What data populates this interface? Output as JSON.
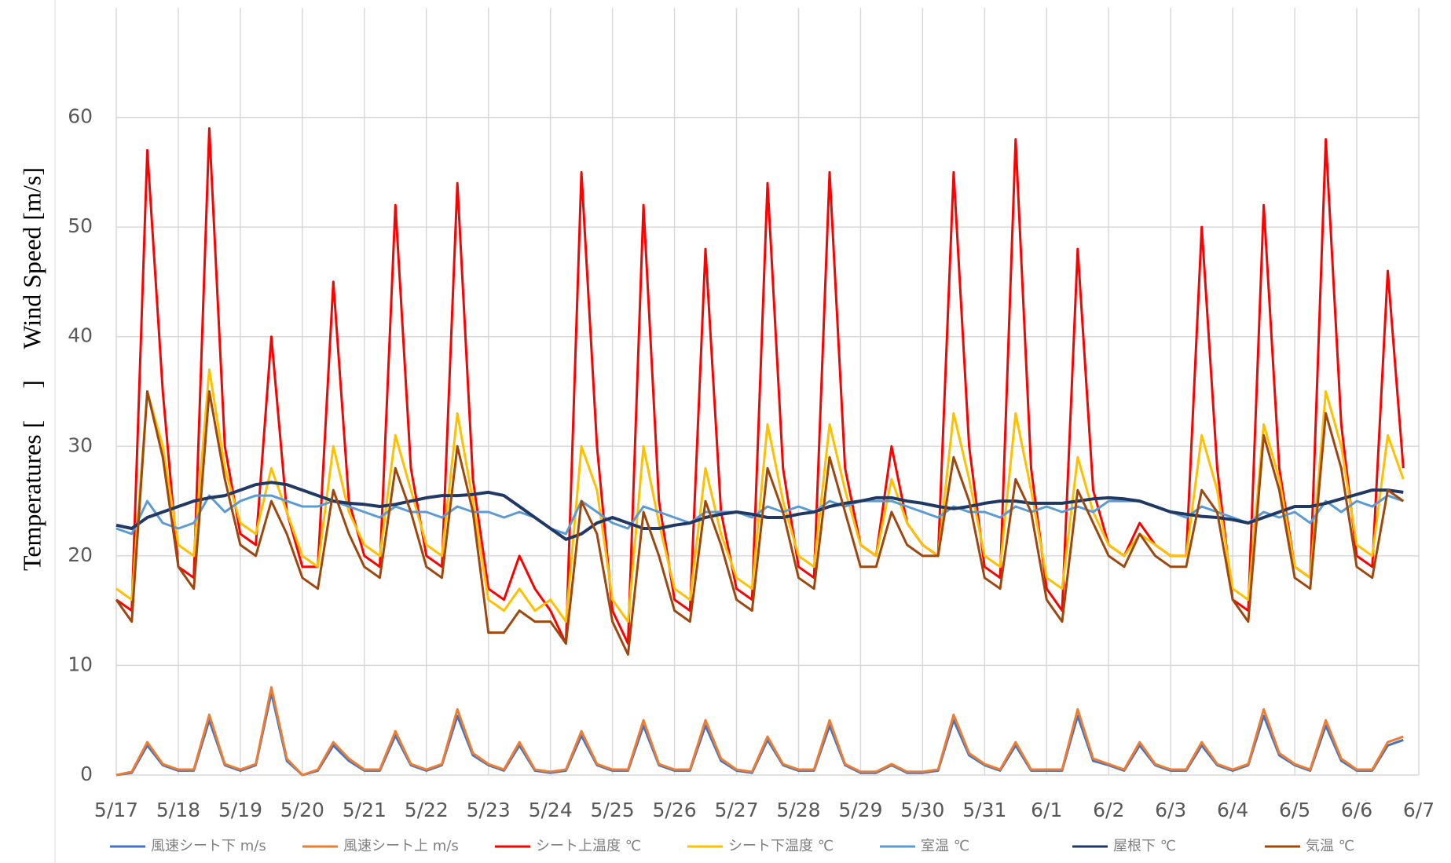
{
  "chart_data": {
    "type": "line",
    "ylabel": "Temperatures [     ]     Wind Speed [m/s]",
    "x": [
      0,
      0.25,
      0.5,
      0.75,
      1,
      1.25,
      1.5,
      1.75,
      2,
      2.25,
      2.5,
      2.75,
      3,
      3.25,
      3.5,
      3.75,
      4,
      4.25,
      4.5,
      4.75,
      5,
      5.25,
      5.5,
      5.75,
      6,
      6.25,
      6.5,
      6.75,
      7,
      7.25,
      7.5,
      7.75,
      8,
      8.25,
      8.5,
      8.75,
      9,
      9.25,
      9.5,
      9.75,
      10,
      10.25,
      10.5,
      10.75,
      11,
      11.25,
      11.5,
      11.75,
      12,
      12.25,
      12.5,
      12.75,
      13,
      13.25,
      13.5,
      13.75,
      14,
      14.25,
      14.5,
      14.75,
      15,
      15.25,
      15.5,
      15.75,
      16,
      16.25,
      16.5,
      16.75,
      17,
      17.25,
      17.5,
      17.75,
      18,
      18.25,
      18.5,
      18.75,
      19,
      19.25,
      19.5,
      19.75,
      20,
      20.25,
      20.5,
      20.75
    ],
    "xlim": [
      0,
      21
    ],
    "xticks": [
      {
        "value": 0,
        "label": "5/17"
      },
      {
        "value": 1,
        "label": "5/18"
      },
      {
        "value": 2,
        "label": "5/19"
      },
      {
        "value": 3,
        "label": "5/20"
      },
      {
        "value": 4,
        "label": "5/21"
      },
      {
        "value": 5,
        "label": "5/22"
      },
      {
        "value": 6,
        "label": "5/23"
      },
      {
        "value": 7,
        "label": "5/24"
      },
      {
        "value": 8,
        "label": "5/25"
      },
      {
        "value": 9,
        "label": "5/26"
      },
      {
        "value": 10,
        "label": "5/27"
      },
      {
        "value": 11,
        "label": "5/28"
      },
      {
        "value": 12,
        "label": "5/29"
      },
      {
        "value": 13,
        "label": "5/30"
      },
      {
        "value": 14,
        "label": "5/31"
      },
      {
        "value": 15,
        "label": "6/1"
      },
      {
        "value": 16,
        "label": "6/2"
      },
      {
        "value": 17,
        "label": "6/3"
      },
      {
        "value": 18,
        "label": "6/4"
      },
      {
        "value": 19,
        "label": "6/5"
      },
      {
        "value": 20,
        "label": "6/6"
      },
      {
        "value": 21,
        "label": "6/7"
      }
    ],
    "ylim": [
      0,
      70
    ],
    "yticks": [
      0,
      10,
      20,
      30,
      40,
      50,
      60
    ],
    "grid": true,
    "legend": "bottom",
    "series": [
      {
        "name": "風速シート下 m/s",
        "color": "#4472c4",
        "values": [
          0,
          0.2,
          2.7,
          0.9,
          0.4,
          0.4,
          5,
          0.9,
          0.4,
          0.9,
          7.5,
          1.3,
          0,
          0.4,
          2.7,
          1.3,
          0.4,
          0.4,
          3.6,
          0.9,
          0.4,
          0.9,
          5.4,
          1.8,
          0.9,
          0.4,
          2.7,
          0.4,
          0.2,
          0.4,
          3.6,
          0.9,
          0.4,
          0.4,
          4.5,
          0.9,
          0.4,
          0.4,
          4.5,
          1.3,
          0.4,
          0.2,
          3.2,
          0.9,
          0.4,
          0.4,
          4.5,
          0.9,
          0.2,
          0.2,
          0.9,
          0.2,
          0.2,
          0.4,
          5,
          1.8,
          0.9,
          0.4,
          2.7,
          0.4,
          0.4,
          0.4,
          5.4,
          1.3,
          0.9,
          0.4,
          2.7,
          0.9,
          0.4,
          0.4,
          2.7,
          0.9,
          0.4,
          0.9,
          5.4,
          1.8,
          0.9,
          0.4,
          4.5,
          1.3,
          0.4,
          0.4,
          2.7,
          3.2
        ]
      },
      {
        "name": "風速シート上 m/s",
        "color": "#ed7d31",
        "values": [
          0,
          0.3,
          3,
          1,
          0.5,
          0.5,
          5.5,
          1,
          0.5,
          1,
          8,
          1.5,
          0,
          0.5,
          3,
          1.5,
          0.5,
          0.5,
          4,
          1,
          0.5,
          1,
          6,
          2,
          1,
          0.5,
          3,
          0.5,
          0.3,
          0.5,
          4,
          1,
          0.5,
          0.5,
          5,
          1,
          0.5,
          0.5,
          5,
          1.5,
          0.5,
          0.3,
          3.5,
          1,
          0.5,
          0.5,
          5,
          1,
          0.3,
          0.3,
          1,
          0.3,
          0.3,
          0.5,
          5.5,
          2,
          1,
          0.5,
          3,
          0.5,
          0.5,
          0.5,
          6,
          1.5,
          1,
          0.5,
          3,
          1,
          0.5,
          0.5,
          3,
          1,
          0.5,
          1,
          6,
          2,
          1,
          0.5,
          5,
          1.5,
          0.5,
          0.5,
          3,
          3.5
        ]
      },
      {
        "name": "シート上温度 ℃",
        "color": "#ff0000",
        "values": [
          16,
          15,
          57,
          35,
          19,
          18,
          59,
          30,
          22,
          21,
          40,
          24,
          19,
          19,
          45,
          25,
          20,
          19,
          52,
          28,
          20,
          19,
          54,
          27,
          17,
          16,
          20,
          17,
          15,
          12,
          55,
          30,
          15,
          12,
          52,
          25,
          16,
          15,
          48,
          24,
          17,
          16,
          54,
          28,
          19,
          18,
          55,
          28,
          21,
          20,
          30,
          23,
          21,
          20,
          55,
          30,
          19,
          18,
          58,
          28,
          17,
          15,
          48,
          26,
          21,
          20,
          23,
          21,
          20,
          20,
          50,
          28,
          16,
          15,
          52,
          28,
          19,
          18,
          58,
          32,
          20,
          19,
          46,
          28
        ]
      },
      {
        "name": "シート下温度 ℃",
        "color": "#ffc000",
        "values": [
          17,
          16,
          35,
          30,
          21,
          20,
          37,
          28,
          23,
          22,
          28,
          24,
          20,
          19,
          30,
          24,
          21,
          20,
          31,
          26,
          21,
          20,
          33,
          25,
          16,
          15,
          17,
          15,
          16,
          14,
          30,
          26,
          16,
          14,
          30,
          23,
          17,
          16,
          28,
          22,
          18,
          17,
          32,
          25,
          20,
          19,
          32,
          26,
          21,
          20,
          27,
          23,
          21,
          20,
          33,
          27,
          20,
          19,
          33,
          26,
          18,
          17,
          29,
          24,
          21,
          20,
          22,
          21,
          20,
          20,
          31,
          26,
          17,
          16,
          32,
          27,
          19,
          18,
          35,
          30,
          21,
          20,
          31,
          27
        ]
      },
      {
        "name": "室温 ℃",
        "color": "#5b9bd5",
        "values": [
          22.5,
          22,
          25,
          23,
          22.5,
          23,
          25.5,
          24,
          25,
          25.5,
          25.5,
          25,
          24.5,
          24.5,
          25,
          24.5,
          24,
          23.5,
          24.5,
          24,
          24,
          23.5,
          24.5,
          24,
          24,
          23.5,
          24,
          23.5,
          22.5,
          22,
          25,
          24,
          23,
          22.5,
          24.5,
          24,
          23.5,
          23,
          24,
          24,
          24,
          23.5,
          24.5,
          24,
          24.5,
          24,
          25,
          24.5,
          25,
          25,
          25,
          24.5,
          24,
          23.5,
          24.5,
          24,
          24,
          23.5,
          24.5,
          24,
          24.5,
          24,
          24.5,
          24,
          25,
          25,
          25,
          24.5,
          24,
          23.5,
          24.5,
          24,
          23.5,
          23,
          24,
          23.5,
          24,
          23,
          25,
          24,
          25,
          24.5,
          25.5,
          25
        ]
      },
      {
        "name": "屋根下 ℃",
        "color": "#203864",
        "values": [
          22.8,
          22.5,
          23.5,
          24,
          24.5,
          25,
          25.3,
          25.5,
          26,
          26.5,
          26.7,
          26.5,
          26,
          25.5,
          25,
          24.8,
          24.7,
          24.5,
          24.7,
          25,
          25.3,
          25.5,
          25.5,
          25.6,
          25.8,
          25.5,
          24.5,
          23.5,
          22.5,
          21.5,
          22,
          23,
          23.5,
          23,
          22.5,
          22.5,
          22.8,
          23,
          23.5,
          23.8,
          24,
          23.8,
          23.5,
          23.5,
          23.8,
          24,
          24.5,
          24.8,
          25,
          25.3,
          25.3,
          25,
          24.8,
          24.5,
          24.3,
          24.5,
          24.8,
          25,
          25,
          24.8,
          24.8,
          24.8,
          25,
          25.2,
          25.3,
          25.2,
          25,
          24.5,
          24,
          23.8,
          23.6,
          23.5,
          23.3,
          23,
          23.5,
          24,
          24.5,
          24.5,
          24.8,
          25.2,
          25.6,
          26,
          26,
          25.8
        ]
      },
      {
        "name": "気温 ℃",
        "color": "#9e480e",
        "values": [
          16,
          14,
          35,
          29,
          19,
          17,
          35,
          27,
          21,
          20,
          25,
          22,
          18,
          17,
          26,
          22,
          19,
          18,
          28,
          24,
          19,
          18,
          30,
          24,
          13,
          13,
          15,
          14,
          14,
          12,
          25,
          22,
          14,
          11,
          24,
          20,
          15,
          14,
          25,
          21,
          16,
          15,
          28,
          24,
          18,
          17,
          29,
          24,
          19,
          19,
          24,
          21,
          20,
          20,
          29,
          25,
          18,
          17,
          27,
          24,
          16,
          14,
          26,
          23,
          20,
          19,
          22,
          20,
          19,
          19,
          26,
          24,
          16,
          14,
          31,
          26,
          18,
          17,
          33,
          28,
          19,
          18,
          26,
          25
        ]
      }
    ]
  }
}
